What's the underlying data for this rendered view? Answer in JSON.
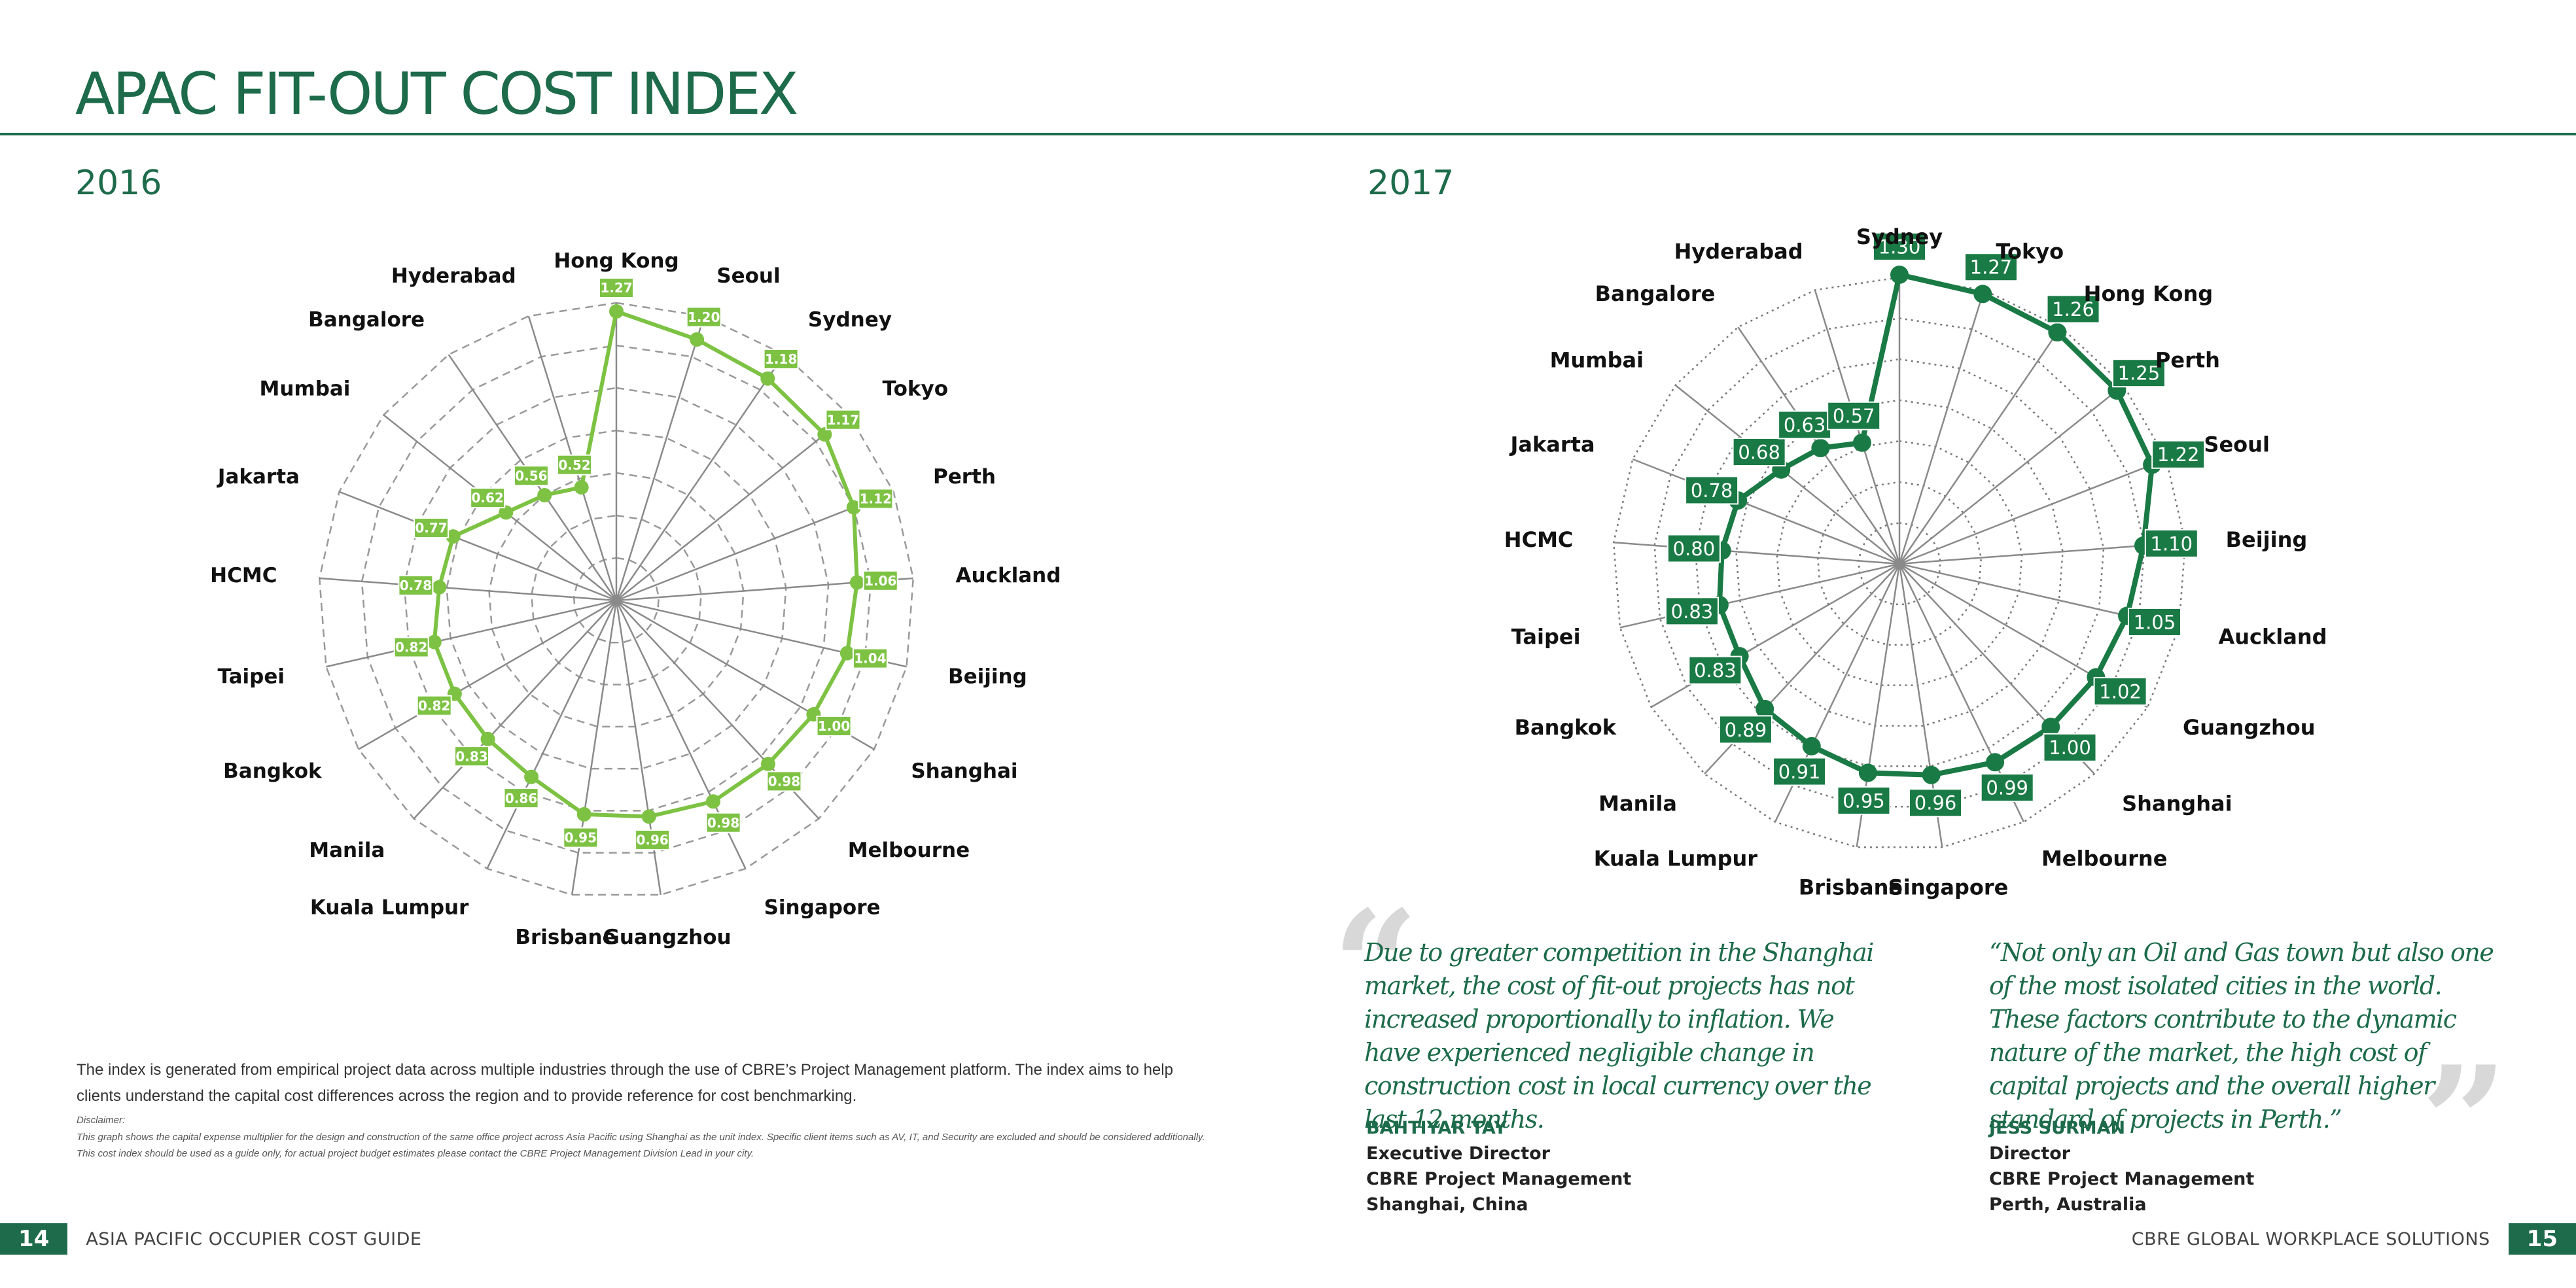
{
  "title": "APAC FIT-OUT COST INDEX",
  "footer": {
    "left_page": "14",
    "left_text": "ASIA PACIFIC OCCUPIER COST GUIDE",
    "right_page": "15",
    "right_text": "CBRE GLOBAL WORKPLACE SOLUTIONS"
  },
  "intro": "The index is generated from empirical project data across multiple industries through the use of CBRE’s Project Management platform. The index aims to help clients understand the capital cost differences across the region and to provide reference for cost benchmarking.",
  "disclaimer": {
    "label": "Disclaimer:",
    "text": "This graph shows the capital expense multiplier for the design and construction of the same office project across Asia Pacific using Shanghai as the unit index. Specific client items such as AV, IT, and Security are excluded and should be considered additionally. This cost index should be used as a guide only, for actual project budget estimates please contact the CBRE Project Management Division Lead in your city."
  },
  "quotes": [
    {
      "text": "Due to greater competition in the Shanghai market, the cost of fit-out projects has not increased proportionally to inflation. We have experienced negligible change in construction cost in local currency over the last 12 months.",
      "open_mark": "“",
      "name": "BAHTIYAR TAY",
      "lines": [
        "Executive Director",
        "CBRE Project Management",
        "Shanghai, China"
      ]
    },
    {
      "text": "“Not only an Oil and Gas town but also one of the most isolated cities in the world. These factors contribute to the dynamic nature of the market, the high cost of capital projects and the overall higher standard of projects in Perth.”",
      "close_mark": "”",
      "name": "JESS SURMAN",
      "lines": [
        "Director",
        "CBRE Project Management",
        "Perth, Australia"
      ]
    }
  ],
  "chart_data": [
    {
      "type": "radar",
      "title": "2016",
      "color": "#7dc243",
      "label_style": "light",
      "grid": "dashed",
      "categories": [
        "Hong Kong",
        "Seoul",
        "Sydney",
        "Tokyo",
        "Perth",
        "Auckland",
        "Beijing",
        "Shanghai",
        "Melbourne",
        "Singapore",
        "Guangzhou",
        "Brisbane",
        "Kuala Lumpur",
        "Manila",
        "Bangkok",
        "Taipei",
        "HCMC",
        "Jakarta",
        "Mumbai",
        "Bangalore",
        "Hyderabad"
      ],
      "values": [
        1.27,
        1.2,
        1.18,
        1.17,
        1.12,
        1.06,
        1.04,
        1.0,
        0.98,
        0.98,
        0.96,
        0.95,
        0.86,
        0.83,
        0.82,
        0.82,
        0.78,
        0.77,
        0.62,
        0.56,
        0.52
      ],
      "value_labels": [
        "1.27",
        "1.20",
        "1.18",
        "1.17",
        "1.12",
        "1.06",
        "1.04",
        "1.00",
        "0.98",
        "0.98",
        "0.96",
        "0.95",
        "0.86",
        "0.83",
        "0.82",
        "0.82",
        "0.78",
        "0.77",
        "0.62",
        "0.56",
        "0.52"
      ],
      "rlim": [
        0,
        1.4
      ]
    },
    {
      "type": "radar",
      "title": "2017",
      "color": "#1a7a45",
      "label_style": "dark",
      "grid": "dotted",
      "categories": [
        "Sydney",
        "Tokyo",
        "Hong Kong",
        "Perth",
        "Seoul",
        "Beijing",
        "Auckland",
        "Guangzhou",
        "Shanghai",
        "Melbourne",
        "Singapore",
        "Brisbane",
        "Kuala Lumpur",
        "Manila",
        "Bangkok",
        "Taipei",
        "HCMC",
        "Jakarta",
        "Mumbai",
        "Bangalore",
        "Hyderabad"
      ],
      "values": [
        1.3,
        1.27,
        1.26,
        1.25,
        1.22,
        1.1,
        1.05,
        1.02,
        1.0,
        0.99,
        0.96,
        0.95,
        0.91,
        0.89,
        0.83,
        0.83,
        0.8,
        0.78,
        0.68,
        0.63,
        0.57
      ],
      "value_labels": [
        "1.30",
        "1.27",
        "1.26",
        "1.25",
        "1.22",
        "1.10",
        "1.05",
        "1.02",
        "1.00",
        "0.99",
        "0.96",
        "0.95",
        "0.91",
        "0.89",
        "0.83",
        "0.83",
        "0.80",
        "0.78",
        "0.68",
        "0.63",
        "0.57"
      ],
      "rlim": [
        0,
        1.4
      ]
    }
  ]
}
